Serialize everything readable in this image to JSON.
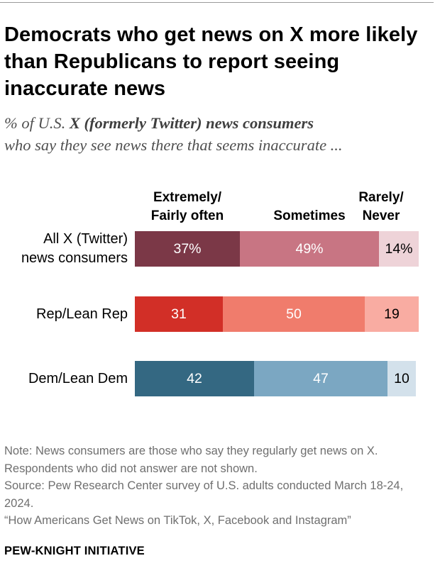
{
  "title": "Democrats who get news on X more likely than Republicans to report seeing inaccurate news",
  "subtitle": {
    "pre": "% of U.S. ",
    "bold": "X (formerly Twitter) news consumers",
    "post": "who say they see news there that seems inaccurate ..."
  },
  "chart_data": {
    "type": "bar",
    "orientation": "horizontal",
    "stacked": true,
    "categories": [
      "All X (Twitter) news consumers",
      "Rep/Lean Rep",
      "Dem/Lean Dem"
    ],
    "category_lines": [
      [
        "All X (Twitter)",
        "news consumers"
      ],
      [
        "Rep/Lean Rep"
      ],
      [
        "Dem/Lean Dem"
      ]
    ],
    "series": [
      {
        "name": "Extremely/ Fairly often",
        "name_lines": [
          "Extremely/",
          "Fairly often"
        ],
        "values": [
          37,
          31,
          42
        ]
      },
      {
        "name": "Sometimes",
        "name_lines": [
          "Sometimes"
        ],
        "values": [
          49,
          50,
          47
        ]
      },
      {
        "name": "Rarely/ Never",
        "name_lines": [
          "Rarely/",
          "Never"
        ],
        "values": [
          14,
          19,
          10
        ]
      }
    ],
    "data_labels": [
      [
        "37%",
        "49%",
        "14%"
      ],
      [
        "31",
        "50",
        "19"
      ],
      [
        "42",
        "47",
        "10"
      ]
    ],
    "colors": [
      [
        "#7b3847",
        "#c87583",
        "#eed3d8"
      ],
      [
        "#d22f27",
        "#f07c6c",
        "#f9aca2"
      ],
      [
        "#346882",
        "#7ba7c2",
        "#d3e1eb"
      ]
    ],
    "label_colors": [
      [
        "#ffffff",
        "#ffffff",
        "#000000"
      ],
      [
        "#ffffff",
        "#ffffff",
        "#000000"
      ],
      [
        "#ffffff",
        "#ffffff",
        "#000000"
      ]
    ],
    "xlim": [
      0,
      100
    ]
  },
  "notes": [
    "Note: News consumers are those who say they regularly get news on X. Respondents who did not answer are not shown.",
    "Source: Pew Research Center survey of U.S. adults conducted March 18-24, 2024.",
    "“How Americans Get News on TikTok, X, Facebook and Instagram”"
  ],
  "brand": "PEW-KNIGHT INITIATIVE"
}
